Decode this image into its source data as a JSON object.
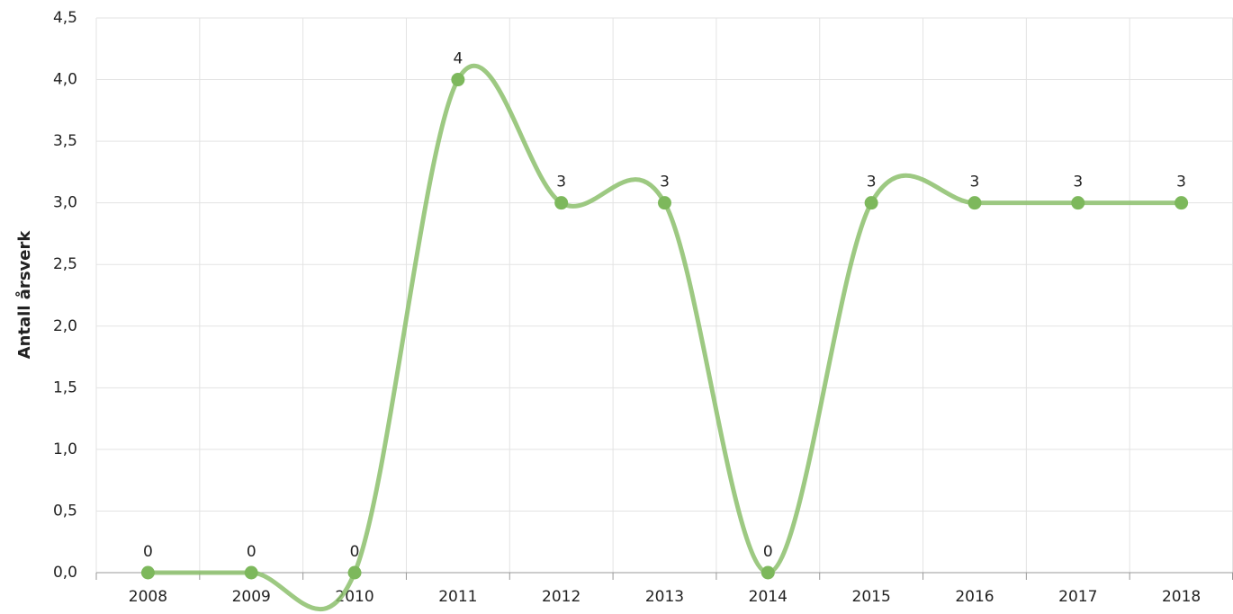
{
  "chart_data": {
    "type": "line",
    "y_label": "Antall årsverk",
    "categories": [
      "2008",
      "2009",
      "2010",
      "2011",
      "2012",
      "2013",
      "2014",
      "2015",
      "2016",
      "2017",
      "2018"
    ],
    "series": [
      {
        "name": "Antall årsverk",
        "color": "#8cc06c",
        "values": [
          0,
          0,
          0,
          4,
          3,
          3,
          0,
          3,
          3,
          3,
          3
        ]
      }
    ],
    "ylim": [
      0,
      4.5
    ],
    "yticks": [
      {
        "value": 0,
        "label": "0,0"
      },
      {
        "value": 0.5,
        "label": "0,5"
      },
      {
        "value": 1,
        "label": "1,0"
      },
      {
        "value": 1.5,
        "label": "1,5"
      },
      {
        "value": 2,
        "label": "2,0"
      },
      {
        "value": 2.5,
        "label": "2,5"
      },
      {
        "value": 3,
        "label": "3,0"
      },
      {
        "value": 3.5,
        "label": "3,5"
      },
      {
        "value": 4,
        "label": "4,0"
      },
      {
        "value": 4.5,
        "label": "4,5"
      }
    ],
    "grid": true,
    "smooth": true
  }
}
